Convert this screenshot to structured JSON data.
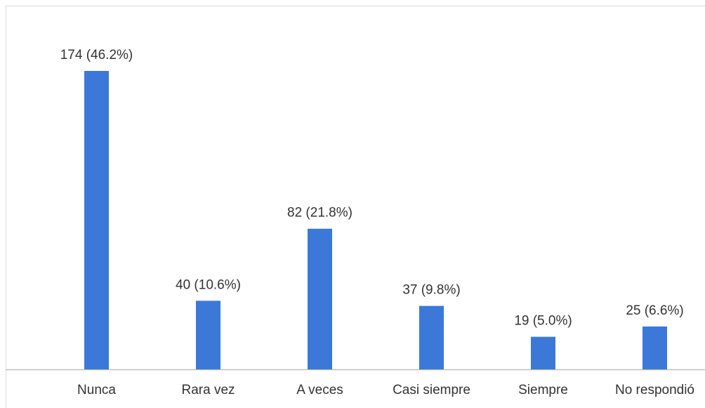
{
  "chart_data": {
    "type": "bar",
    "categories": [
      "Nunca",
      "Rara vez",
      "A veces",
      "Casi siempre",
      "Siempre",
      "No respondió"
    ],
    "values": [
      174,
      40,
      82,
      37,
      19,
      25
    ],
    "value_labels": [
      "174 (46.2%)",
      "40 (10.6%)",
      "82 (21.8%)",
      "37 (9.8%)",
      "19 (5.0%)",
      "25 (6.6%)"
    ],
    "color": "#3c78d8"
  }
}
